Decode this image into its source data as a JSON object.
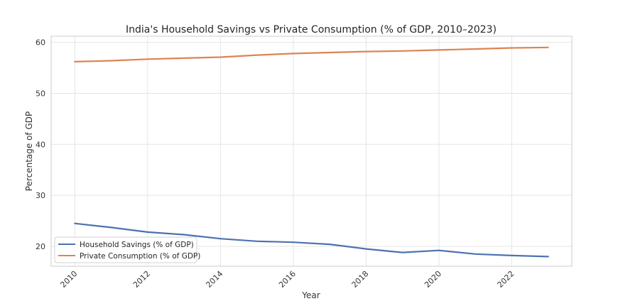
{
  "chart_data": {
    "type": "line",
    "title": "India's Household Savings vs Private Consumption (% of GDP, 2010–2023)",
    "xlabel": "Year",
    "ylabel": "Percentage of GDP",
    "x": [
      2010,
      2011,
      2012,
      2013,
      2014,
      2015,
      2016,
      2017,
      2018,
      2019,
      2020,
      2021,
      2022,
      2023
    ],
    "xticks": [
      "2010",
      "2012",
      "2014",
      "2016",
      "2018",
      "2020",
      "2022"
    ],
    "yticks": [
      "20",
      "30",
      "40",
      "50",
      "60"
    ],
    "xlim": [
      2009.35,
      2023.65
    ],
    "ylim": [
      16.1,
      61.2
    ],
    "grid": true,
    "legend_position": "lower-left",
    "series": [
      {
        "name": "Household Savings (% of GDP)",
        "color": "#4c72b0",
        "values": [
          24.5,
          23.7,
          22.8,
          22.3,
          21.5,
          21.0,
          20.8,
          20.4,
          19.5,
          18.8,
          19.2,
          18.5,
          18.2,
          18.0
        ]
      },
      {
        "name": "Private Consumption (% of GDP)",
        "color": "#dd8452",
        "values": [
          56.2,
          56.4,
          56.7,
          56.9,
          57.1,
          57.5,
          57.8,
          58.0,
          58.2,
          58.3,
          58.5,
          58.7,
          58.9,
          59.0
        ]
      }
    ]
  }
}
